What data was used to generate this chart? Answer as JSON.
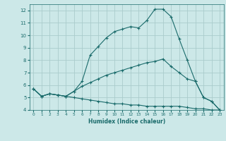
{
  "xlabel": "Humidex (Indice chaleur)",
  "bg_color": "#cce8e8",
  "grid_color": "#aacccc",
  "line_color": "#1a6b6b",
  "xlim": [
    -0.5,
    23.5
  ],
  "ylim": [
    4,
    12.5
  ],
  "xticks": [
    0,
    1,
    2,
    3,
    4,
    5,
    6,
    7,
    8,
    9,
    10,
    11,
    12,
    13,
    14,
    15,
    16,
    17,
    18,
    19,
    20,
    21,
    22,
    23
  ],
  "yticks": [
    4,
    5,
    6,
    7,
    8,
    9,
    10,
    11,
    12
  ],
  "line1_x": [
    0,
    1,
    2,
    3,
    4,
    5,
    6,
    7,
    8,
    9,
    10,
    11,
    12,
    13,
    14,
    15,
    16,
    17,
    18,
    19,
    20,
    21,
    22,
    23
  ],
  "line1_y": [
    5.7,
    5.1,
    5.3,
    5.2,
    5.1,
    5.5,
    6.3,
    8.4,
    9.1,
    9.8,
    10.3,
    10.5,
    10.7,
    10.6,
    11.2,
    12.1,
    12.1,
    11.5,
    9.7,
    8.0,
    6.3,
    5.0,
    4.7,
    4.0
  ],
  "line2_x": [
    0,
    1,
    2,
    3,
    4,
    5,
    6,
    7,
    8,
    9,
    10,
    11,
    12,
    13,
    14,
    15,
    16,
    17,
    18,
    19,
    20,
    21,
    22,
    23
  ],
  "line2_y": [
    5.7,
    5.1,
    5.3,
    5.2,
    5.1,
    5.5,
    5.9,
    6.2,
    6.5,
    6.8,
    7.0,
    7.2,
    7.4,
    7.6,
    7.8,
    7.9,
    8.1,
    7.5,
    7.0,
    6.5,
    6.3,
    5.0,
    4.7,
    4.0
  ],
  "line3_x": [
    0,
    1,
    2,
    3,
    4,
    5,
    6,
    7,
    8,
    9,
    10,
    11,
    12,
    13,
    14,
    15,
    16,
    17,
    18,
    19,
    20,
    21,
    22,
    23
  ],
  "line3_y": [
    5.7,
    5.1,
    5.3,
    5.2,
    5.1,
    5.0,
    4.9,
    4.8,
    4.7,
    4.6,
    4.5,
    4.5,
    4.4,
    4.4,
    4.3,
    4.3,
    4.3,
    4.3,
    4.3,
    4.2,
    4.1,
    4.1,
    4.0,
    4.0
  ]
}
